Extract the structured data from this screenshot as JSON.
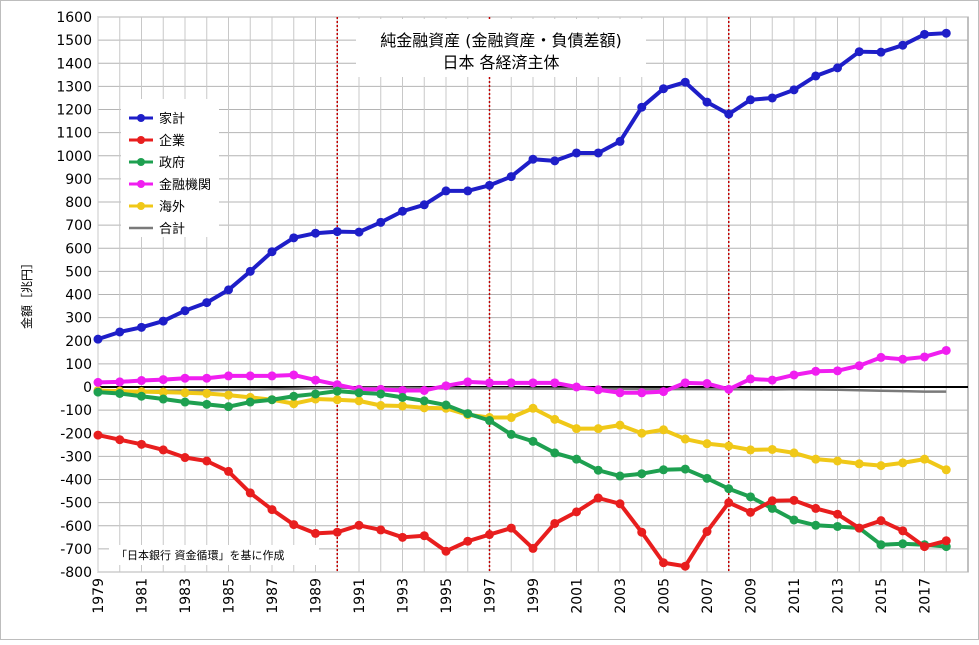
{
  "chart_data": {
    "type": "line",
    "title": "純金融資産 (金融資産・負債差額)",
    "subtitle": "日本 各経済主体",
    "ylabel": "金額［兆円］",
    "xlabel": "",
    "ylim": [
      -800,
      1600
    ],
    "ytick_step": 100,
    "x": [
      1979,
      1980,
      1981,
      1982,
      1983,
      1984,
      1985,
      1986,
      1987,
      1988,
      1989,
      1990,
      1991,
      1992,
      1993,
      1994,
      1995,
      1996,
      1997,
      1998,
      1999,
      2000,
      2001,
      2002,
      2003,
      2004,
      2005,
      2006,
      2007,
      2008,
      2009,
      2010,
      2011,
      2012,
      2013,
      2014,
      2015,
      2016,
      2017,
      2018
    ],
    "xtick_labels": [
      "1979",
      "1981",
      "1983",
      "1985",
      "1987",
      "1989",
      "1991",
      "1993",
      "1995",
      "1997",
      "1999",
      "2001",
      "2003",
      "2005",
      "2007",
      "2009",
      "2011",
      "2013",
      "2015",
      "2017"
    ],
    "grid": true,
    "legend_position": "top-left",
    "reference_lines": [
      1990,
      1997,
      2008
    ],
    "note": "「日本銀行 資金循環」を基に作成",
    "series": [
      {
        "name": "家計",
        "color": "#1e1ec8",
        "values": [
          207,
          238,
          258,
          285,
          330,
          365,
          420,
          500,
          585,
          645,
          665,
          672,
          670,
          712,
          760,
          788,
          848,
          848,
          872,
          910,
          985,
          978,
          1012,
          1012,
          1062,
          1210,
          1290,
          1318,
          1232,
          1180,
          1242,
          1250,
          1285,
          1345,
          1380,
          1450,
          1448,
          1478,
          1525,
          1530
        ]
      },
      {
        "name": "企業",
        "color": "#e81e1e",
        "values": [
          -208,
          -228,
          -248,
          -272,
          -305,
          -320,
          -365,
          -458,
          -530,
          -595,
          -633,
          -628,
          -598,
          -618,
          -650,
          -643,
          -710,
          -667,
          -638,
          -610,
          -698,
          -590,
          -540,
          -480,
          -505,
          -628,
          -760,
          -775,
          -625,
          -500,
          -542,
          -492,
          -490,
          -525,
          -550,
          -610,
          -578,
          -622,
          -690,
          -665
        ]
      },
      {
        "name": "政府",
        "color": "#1ea050",
        "values": [
          -22,
          -28,
          -40,
          -52,
          -65,
          -75,
          -85,
          -65,
          -55,
          -40,
          -30,
          -18,
          -25,
          -30,
          -45,
          -60,
          -78,
          -115,
          -145,
          -205,
          -235,
          -285,
          -312,
          -360,
          -385,
          -375,
          -358,
          -355,
          -395,
          -440,
          -475,
          -525,
          -575,
          -598,
          -603,
          -610,
          -682,
          -678,
          -682,
          -690
        ]
      },
      {
        "name": "金融機関",
        "color": "#f01ef0",
        "values": [
          20,
          22,
          28,
          32,
          38,
          38,
          48,
          48,
          48,
          52,
          30,
          10,
          -10,
          -10,
          -15,
          -15,
          5,
          22,
          18,
          18,
          18,
          18,
          0,
          -12,
          -25,
          -25,
          -20,
          18,
          15,
          -10,
          35,
          30,
          52,
          68,
          70,
          92,
          128,
          120,
          130,
          158
        ]
      },
      {
        "name": "海外",
        "color": "#f0c818",
        "values": [
          -15,
          -18,
          -20,
          -22,
          -25,
          -28,
          -35,
          -45,
          -55,
          -72,
          -52,
          -55,
          -60,
          -80,
          -82,
          -90,
          -92,
          -120,
          -132,
          -132,
          -92,
          -140,
          -180,
          -180,
          -165,
          -200,
          -185,
          -225,
          -245,
          -255,
          -272,
          -270,
          -285,
          -312,
          -320,
          -332,
          -340,
          -328,
          -312,
          -358
        ]
      },
      {
        "name": "合計",
        "color": "#7a7a7a",
        "values": [
          -18,
          -18,
          -17,
          -16,
          -15,
          -14,
          -13,
          -12,
          -10,
          -8,
          -5,
          -4,
          -3,
          -3,
          -4,
          -5,
          -6,
          -6,
          -6,
          -6,
          -7,
          -7,
          -8,
          -8,
          -8,
          -9,
          -9,
          -9,
          -9,
          -10,
          -10,
          -11,
          -10,
          -11,
          -12,
          -14,
          -16,
          -18,
          -20,
          -20
        ]
      }
    ]
  }
}
